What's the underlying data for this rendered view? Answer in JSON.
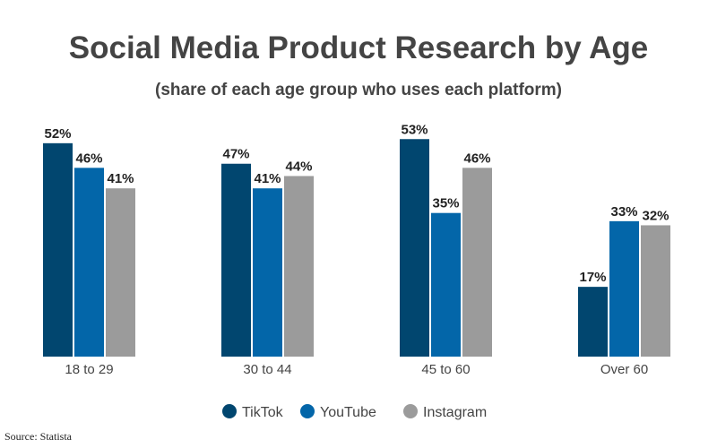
{
  "chart_data": {
    "type": "bar",
    "title": "Social Media Product Research by Age",
    "subtitle": "(share of each age group who uses each platform)",
    "categories": [
      "18 to 29",
      "30 to 44",
      "45 to 60",
      "Over 60"
    ],
    "series": [
      {
        "name": "TikTok",
        "values": [
          52,
          47,
          53,
          17
        ],
        "color": "#01466f"
      },
      {
        "name": "YouTube",
        "values": [
          46,
          41,
          35,
          33
        ],
        "color": "#0366a9"
      },
      {
        "name": "Instagram",
        "values": [
          41,
          44,
          46,
          32
        ],
        "color": "#9b9b9b"
      }
    ],
    "value_suffix": "%",
    "ylim": [
      0,
      60
    ],
    "grid": false,
    "legend": "bottom"
  },
  "source": "Source: Statista"
}
